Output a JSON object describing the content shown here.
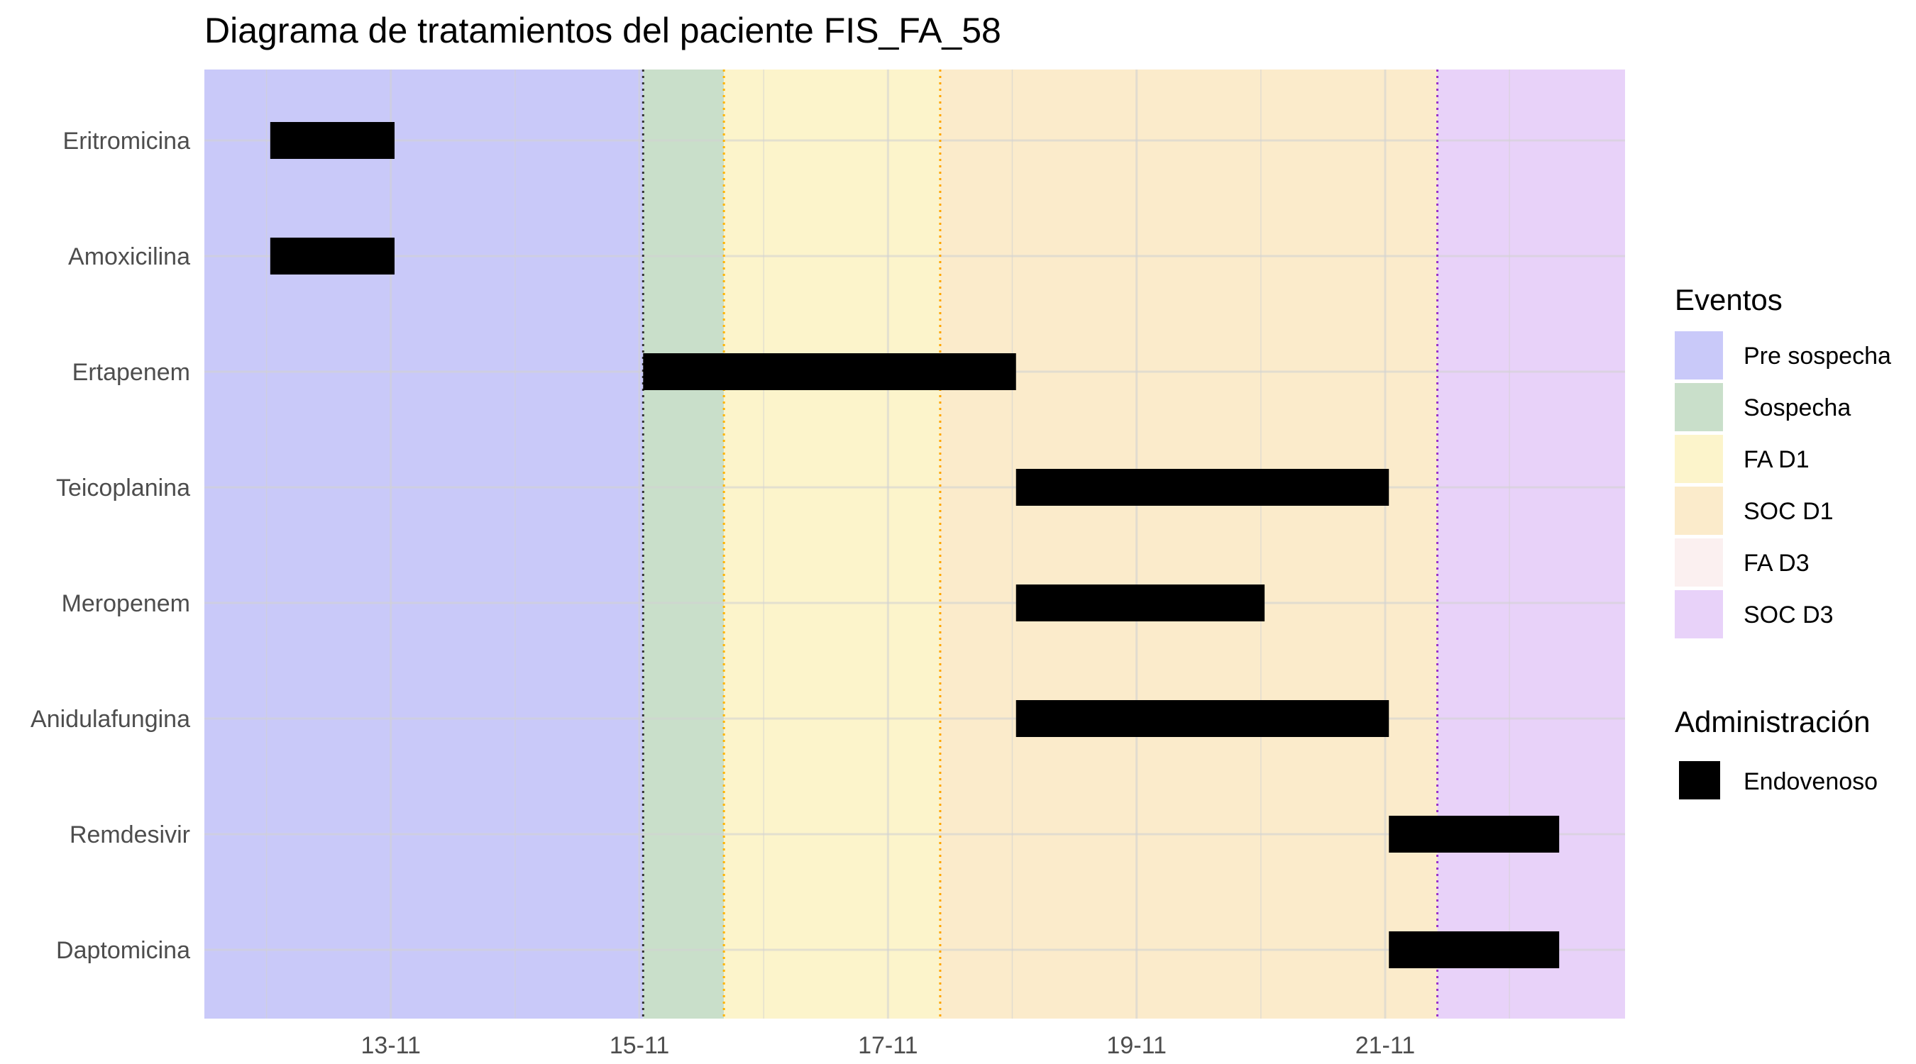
{
  "chart_data": {
    "type": "gantt",
    "title": "Diagrama de tratamientos del paciente FIS_FA_58",
    "xlabel": "",
    "ylabel": "",
    "x_ticks": [
      "13-11",
      "15-11",
      "17-11",
      "19-11",
      "21-11"
    ],
    "x_tick_values": [
      13,
      15,
      17,
      19,
      21
    ],
    "xlim": [
      11.5,
      22.93
    ],
    "grid": true,
    "legend_position": "right",
    "treatments": [
      {
        "name": "Eritromicina",
        "start": 12.03,
        "end": 13.03,
        "administration": "Endovenoso"
      },
      {
        "name": "Amoxicilina",
        "start": 12.03,
        "end": 13.03,
        "administration": "Endovenoso"
      },
      {
        "name": "Ertapenem",
        "start": 15.03,
        "end": 18.03,
        "administration": "Endovenoso"
      },
      {
        "name": "Teicoplanina",
        "start": 18.03,
        "end": 21.03,
        "administration": "Endovenoso"
      },
      {
        "name": "Meropenem",
        "start": 18.03,
        "end": 20.03,
        "administration": "Endovenoso"
      },
      {
        "name": "Anidulafungina",
        "start": 18.03,
        "end": 21.03,
        "administration": "Endovenoso"
      },
      {
        "name": "Remdesivir",
        "start": 21.03,
        "end": 22.4,
        "administration": "Endovenoso"
      },
      {
        "name": "Daptomicina",
        "start": 21.03,
        "end": 22.4,
        "administration": "Endovenoso"
      }
    ],
    "event_periods": [
      {
        "name": "Pre sospecha",
        "start": 11.5,
        "end": 15.03,
        "color": "#c9c9f9"
      },
      {
        "name": "Sospecha",
        "start": 15.03,
        "end": 15.68,
        "color": "#c9dfca"
      },
      {
        "name": "FA D1",
        "start": 15.68,
        "end": 17.42,
        "color": "#fcf4cb"
      },
      {
        "name": "SOC D1",
        "start": 17.42,
        "end": 21.42,
        "color": "#fbebcb"
      },
      {
        "name": "SOC D3",
        "start": 21.42,
        "end": 22.93,
        "color": "#e8d2f9"
      }
    ],
    "event_lines": [
      {
        "x": 15.03,
        "color": "#333333"
      },
      {
        "x": 15.68,
        "color": "#ffb400"
      },
      {
        "x": 17.42,
        "color": "#ffa500"
      },
      {
        "x": 21.42,
        "color": "#9932cc"
      }
    ],
    "legend_events": {
      "title": "Eventos",
      "items": [
        {
          "label": "Pre sospecha",
          "color": "#c9c9f9"
        },
        {
          "label": "Sospecha",
          "color": "#c9dfca"
        },
        {
          "label": "FA D1",
          "color": "#fcf4cb"
        },
        {
          "label": "SOC D1",
          "color": "#fbebcb"
        },
        {
          "label": "FA D3",
          "color": "#fbf0f0"
        },
        {
          "label": "SOC D3",
          "color": "#e8d2f9"
        }
      ]
    },
    "legend_administration": {
      "title": "Administración",
      "items": [
        {
          "label": "Endovenoso",
          "color": "#000000"
        }
      ]
    }
  }
}
